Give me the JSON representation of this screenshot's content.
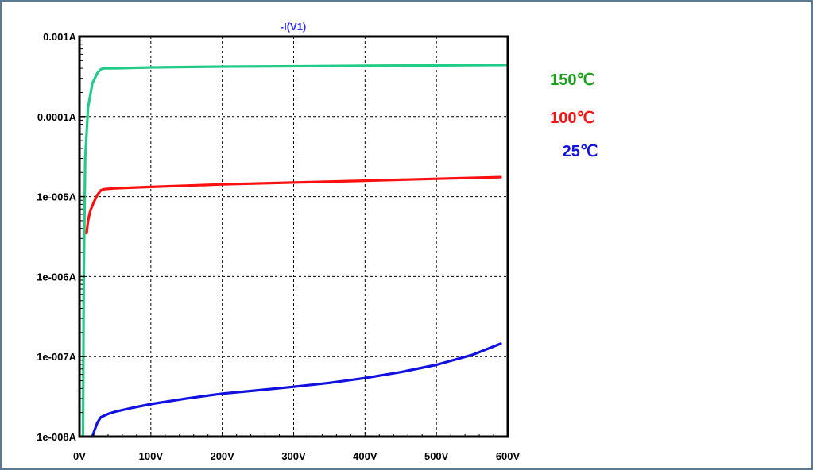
{
  "chart_data": {
    "type": "line",
    "title": "-I(V1)",
    "title_color": "#2b2bff",
    "xlabel": "",
    "ylabel": "",
    "x_scale": "linear",
    "y_scale": "log",
    "xlim": [
      0,
      600
    ],
    "ylim": [
      1e-08,
      0.001
    ],
    "grid": true,
    "legend_placement": "right",
    "x_ticks": [
      {
        "value": 0,
        "label": "0V"
      },
      {
        "value": 100,
        "label": "100V"
      },
      {
        "value": 200,
        "label": "200V"
      },
      {
        "value": 300,
        "label": "300V"
      },
      {
        "value": 400,
        "label": "400V"
      },
      {
        "value": 500,
        "label": "500V"
      },
      {
        "value": 600,
        "label": "600V"
      }
    ],
    "y_ticks": [
      {
        "value": 0.001,
        "label": "0.001A"
      },
      {
        "value": 0.0001,
        "label": "0.0001A"
      },
      {
        "value": 1e-05,
        "label": "1e-005A"
      },
      {
        "value": 1e-06,
        "label": "1e-006A"
      },
      {
        "value": 1e-07,
        "label": "1e-007A"
      },
      {
        "value": 1e-08,
        "label": "1e-008A"
      }
    ],
    "series": [
      {
        "name": "150℃",
        "color": "#22cc88",
        "label_color": "#18a018",
        "x": [
          5,
          6,
          8,
          12,
          18,
          25,
          30,
          35,
          50,
          100,
          200,
          300,
          400,
          500,
          600
        ],
        "y": [
          1e-08,
          1e-06,
          3e-05,
          0.00013,
          0.00026,
          0.00035,
          0.00039,
          0.0004,
          0.0004,
          0.00041,
          0.00042,
          0.000425,
          0.00043,
          0.000435,
          0.00044
        ]
      },
      {
        "name": "100℃",
        "color": "#ff1010",
        "label_color": "#ff1010",
        "x": [
          10,
          12,
          15,
          20,
          25,
          30,
          35,
          50,
          100,
          200,
          300,
          400,
          500,
          590
        ],
        "y": [
          3.5e-06,
          5e-06,
          6.6e-06,
          8.5e-06,
          1.05e-05,
          1.2e-05,
          1.24e-05,
          1.27e-05,
          1.32e-05,
          1.42e-05,
          1.5e-05,
          1.58e-05,
          1.67e-05,
          1.75e-05
        ]
      },
      {
        "name": "25℃",
        "color": "#1010e0",
        "label_color": "#1010e0",
        "x": [
          18,
          21,
          25,
          30,
          40,
          50,
          75,
          100,
          150,
          200,
          250,
          300,
          350,
          400,
          450,
          500,
          550,
          590
        ],
        "y": [
          1e-08,
          1.2e-08,
          1.5e-08,
          1.75e-08,
          1.92e-08,
          2.05e-08,
          2.3e-08,
          2.55e-08,
          3e-08,
          3.45e-08,
          3.8e-08,
          4.2e-08,
          4.7e-08,
          5.4e-08,
          6.4e-08,
          7.9e-08,
          1.05e-07,
          1.45e-07
        ]
      }
    ]
  }
}
